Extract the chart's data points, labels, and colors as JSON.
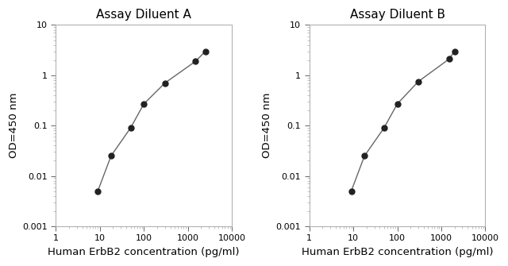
{
  "panel_A": {
    "title": "Assay Diluent A",
    "x": [
      9,
      18,
      50,
      100,
      300,
      1500,
      2500
    ],
    "y": [
      0.005,
      0.025,
      0.09,
      0.27,
      0.7,
      1.9,
      3.0
    ]
  },
  "panel_B": {
    "title": "Assay Diluent B",
    "x": [
      9,
      18,
      50,
      100,
      300,
      1500,
      2000
    ],
    "y": [
      0.005,
      0.025,
      0.09,
      0.27,
      0.75,
      2.1,
      3.0
    ]
  },
  "xlabel": "Human ErbB2 concentration (pg/ml)",
  "ylabel": "OD=450 nm",
  "xlim": [
    1,
    10000
  ],
  "ylim": [
    0.001,
    10
  ],
  "xticks": [
    1,
    10,
    100,
    1000,
    10000
  ],
  "xtick_labels": [
    "1",
    "10",
    "100",
    "1000",
    "10000"
  ],
  "yticks": [
    0.001,
    0.01,
    0.1,
    1,
    10
  ],
  "ytick_labels": [
    "0.001",
    "0.01",
    "0.1",
    "1",
    "10"
  ],
  "line_color": "#666666",
  "marker_color": "#222222",
  "marker_size": 5,
  "line_width": 1.0,
  "title_fontsize": 11,
  "label_fontsize": 9.5,
  "tick_fontsize": 8,
  "spine_color": "#aaaaaa",
  "bg_color": "#ffffff"
}
